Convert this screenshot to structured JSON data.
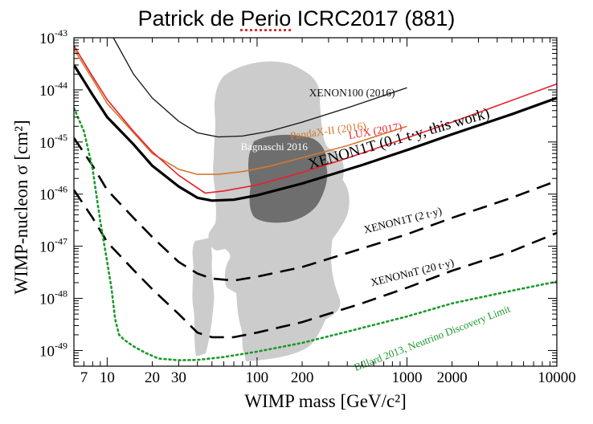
{
  "page_title": "Patrick de Perio ICRC2017 (881)",
  "page_title_parts": {
    "before": "Patrick de ",
    "squiggle": "Perio",
    "after": " ICRC2017 (881)"
  },
  "chart_data": {
    "type": "line",
    "title": "Patrick de Perio ICRC2017 (881)",
    "xlabel": "WIMP mass [GeV/c²]",
    "ylabel": "WIMP-nucleon σ [cm²]",
    "xscale": "log",
    "yscale": "log",
    "xlim": [
      6,
      10000
    ],
    "ylim": [
      5e-50,
      1e-43
    ],
    "x_ticks": [
      7,
      10,
      20,
      30,
      100,
      200,
      1000,
      2000,
      10000
    ],
    "x_tick_labels": [
      "7",
      "10",
      "20",
      "30",
      "100",
      "200",
      "1000",
      "2000",
      "10000"
    ],
    "y_ticks": [
      1e-49,
      1e-48,
      1e-47,
      1e-46,
      1e-45,
      1e-44,
      1e-43
    ],
    "y_tick_exponents": [
      "-49",
      "-48",
      "-47",
      "-46",
      "-45",
      "-44",
      "-43"
    ],
    "y_tick_base": "10",
    "series": [
      {
        "name": "XENON100 (2016)",
        "color": "#111111",
        "style": "solid",
        "width": 1.3,
        "points": [
          [
            11,
            1e-43
          ],
          [
            15,
            2e-44
          ],
          [
            20,
            7e-45
          ],
          [
            30,
            2.5e-45
          ],
          [
            40,
            1.5e-45
          ],
          [
            55,
            1.25e-45
          ],
          [
            80,
            1.3e-45
          ],
          [
            120,
            1.6e-45
          ],
          [
            200,
            2.4e-45
          ],
          [
            400,
            4.5e-45
          ],
          [
            1000,
            1.1e-44
          ]
        ],
        "label_pos": [
          430,
          7.5e-45
        ],
        "label_angle": 0
      },
      {
        "name": "PandaX-II (2016)",
        "color": "#d27a2c",
        "style": "solid",
        "width": 1.6,
        "points": [
          [
            6,
            6e-44
          ],
          [
            8,
            1.6e-44
          ],
          [
            10,
            5.5e-45
          ],
          [
            15,
            1.5e-45
          ],
          [
            20,
            6e-46
          ],
          [
            30,
            3e-46
          ],
          [
            40,
            2.4e-46
          ],
          [
            55,
            2.4e-46
          ],
          [
            80,
            2.7e-46
          ],
          [
            120,
            3.4e-46
          ],
          [
            200,
            5e-46
          ],
          [
            400,
            8.5e-46
          ],
          [
            1000,
            2e-45
          ]
        ],
        "label_pos": [
          300,
          1.4e-45
        ],
        "label_angle": -8
      },
      {
        "name": "LUX (2017)",
        "color": "#e8202c",
        "style": "solid",
        "width": 1.6,
        "points": [
          [
            6,
            7e-44
          ],
          [
            8,
            1.8e-44
          ],
          [
            10,
            6.5e-45
          ],
          [
            15,
            1.6e-45
          ],
          [
            20,
            6.5e-46
          ],
          [
            30,
            2.3e-46
          ],
          [
            45,
            1.05e-46
          ],
          [
            60,
            1.15e-46
          ],
          [
            100,
            1.5e-46
          ],
          [
            200,
            2.6e-46
          ],
          [
            400,
            4.9e-46
          ],
          [
            1000,
            1.2e-45
          ],
          [
            2000,
            2.4e-45
          ],
          [
            10000,
            1.3e-44
          ]
        ],
        "label_pos": [
          620,
          1.4e-45
        ],
        "label_angle": -10
      },
      {
        "name": "XENON1T (0.1 t·y, this work)",
        "color": "#000000",
        "style": "solid",
        "width": 3.2,
        "points": [
          [
            6,
            3e-44
          ],
          [
            8,
            8e-45
          ],
          [
            10,
            3e-45
          ],
          [
            15,
            9e-46
          ],
          [
            20,
            3.5e-46
          ],
          [
            30,
            1.4e-46
          ],
          [
            40,
            8.5e-47
          ],
          [
            50,
            7.5e-47
          ],
          [
            70,
            7.8e-47
          ],
          [
            100,
            9.5e-47
          ],
          [
            200,
            1.6e-46
          ],
          [
            500,
            3.6e-46
          ],
          [
            1000,
            7e-46
          ],
          [
            2000,
            1.4e-45
          ],
          [
            5000,
            3.4e-45
          ],
          [
            10000,
            7e-45
          ]
        ],
        "label_pos": [
          900,
          9.5e-46
        ],
        "label_angle": -16
      },
      {
        "name": "XENON1T (2 t·y)",
        "color": "#000000",
        "style": "dashed",
        "width": 2.6,
        "points": [
          [
            6,
            1.2e-45
          ],
          [
            8,
            3.5e-46
          ],
          [
            10,
            1.2e-46
          ],
          [
            15,
            3.5e-47
          ],
          [
            20,
            1.5e-47
          ],
          [
            30,
            5e-48
          ],
          [
            40,
            3e-48
          ],
          [
            50,
            2.4e-48
          ],
          [
            70,
            2.2e-48
          ],
          [
            100,
            2.6e-48
          ],
          [
            200,
            4e-48
          ],
          [
            500,
            9e-48
          ],
          [
            1000,
            1.7e-47
          ],
          [
            2000,
            3.5e-47
          ],
          [
            5000,
            8.5e-47
          ],
          [
            10000,
            1.8e-46
          ]
        ],
        "label_pos": [
          950,
          2.7e-47
        ],
        "label_angle": -14
      },
      {
        "name": "XENONnT (20 t·y)",
        "color": "#000000",
        "style": "dashed",
        "width": 2.6,
        "points": [
          [
            6,
            1.2e-46
          ],
          [
            8,
            3.5e-47
          ],
          [
            10,
            1.2e-47
          ],
          [
            15,
            3.5e-48
          ],
          [
            20,
            1.5e-48
          ],
          [
            30,
            5e-49
          ],
          [
            40,
            2.2e-49
          ],
          [
            50,
            1.8e-49
          ],
          [
            70,
            1.8e-49
          ],
          [
            100,
            2.2e-49
          ],
          [
            200,
            3.5e-49
          ],
          [
            500,
            8e-49
          ],
          [
            1000,
            1.6e-48
          ],
          [
            2000,
            3.4e-48
          ],
          [
            5000,
            8e-48
          ],
          [
            10000,
            1.8e-47
          ]
        ],
        "label_pos": [
          1100,
          2.7e-48
        ],
        "label_angle": -14
      },
      {
        "name": "Billard 2013, Neutrino Discovery Limit",
        "color": "#1a9a2a",
        "style": "dotted",
        "width": 2.6,
        "points": [
          [
            6,
            4.5e-45
          ],
          [
            7,
            1.6e-45
          ],
          [
            8,
            3e-46
          ],
          [
            9,
            3e-47
          ],
          [
            10,
            5e-48
          ],
          [
            10.7,
            1.5e-48
          ],
          [
            11.3,
            4e-49
          ],
          [
            12,
            2e-49
          ],
          [
            13,
            1.6e-49
          ],
          [
            15,
            1.2e-49
          ],
          [
            18,
            9e-50
          ],
          [
            22,
            7e-50
          ],
          [
            30,
            6.5e-50
          ],
          [
            40,
            6.6e-50
          ],
          [
            60,
            7.5e-50
          ],
          [
            100,
            9.5e-50
          ],
          [
            200,
            1.4e-49
          ],
          [
            400,
            2.3e-49
          ],
          [
            1000,
            4.5e-49
          ],
          [
            2000,
            8e-49
          ],
          [
            5000,
            1.4e-48
          ],
          [
            10000,
            2.1e-48
          ]
        ],
        "label_pos": [
          1500,
          1.5e-49
        ],
        "label_angle": -21
      }
    ],
    "annotations": [
      {
        "text": "Bagnaschi 2016",
        "x": 130,
        "y": 7e-46,
        "color": "#ffffff"
      }
    ],
    "regions": [
      {
        "name": "Bagnaschi 2016 (light)",
        "color": "#cccccc"
      },
      {
        "name": "Bagnaschi 2016 (dark)",
        "color": "#6e6e6e"
      }
    ]
  }
}
